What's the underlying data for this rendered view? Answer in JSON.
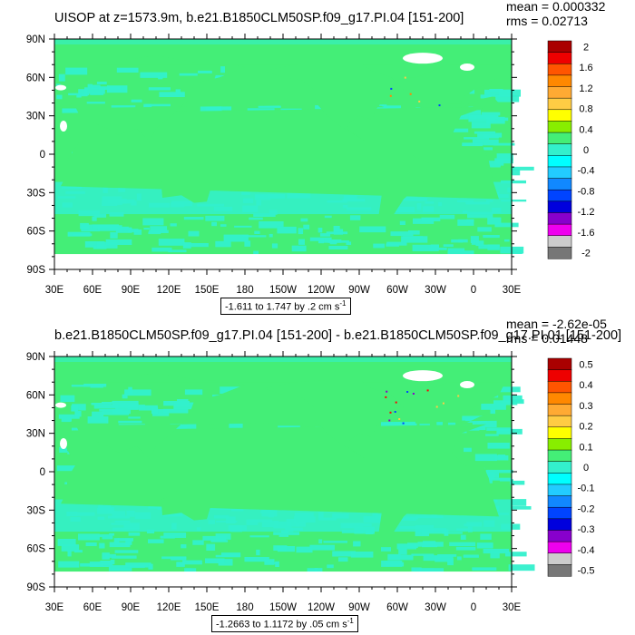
{
  "chart_data": [
    {
      "type": "heatmap",
      "title": "UISOP at z=1573.9m, b.e21.B1850CLM50SP.f09_g17.PI.04 [151-200]",
      "mean_label": "mean = 0.000332",
      "rms_label": "rms = 0.02713",
      "range_label": "-1.611 to 1.747 by .2 cm s",
      "range_unit_exp": "-1",
      "y_ticks": [
        "90N",
        "60N",
        "30N",
        "0",
        "30S",
        "60S",
        "90S"
      ],
      "x_ticks": [
        "30E",
        "60E",
        "90E",
        "120E",
        "150E",
        "180",
        "150W",
        "120W",
        "90W",
        "60W",
        "30W",
        "0",
        "30E"
      ],
      "colorbar_levels": [
        "2",
        "1.6",
        "1.2",
        "0.8",
        "0.4",
        "0",
        "-0.4",
        "-0.8",
        "-1.2",
        "-1.6",
        "-2"
      ]
    },
    {
      "type": "heatmap",
      "title": "b.e21.B1850CLM50SP.f09_g17.PI.04 [151-200] - b.e21.B1850CLM50SP.f09_g17.PI.01 [151-200]",
      "mean_label": "mean = -2.62e-05",
      "rms_label": "rms = 0.01448",
      "range_label": "-1.2663 to 1.1172 by .05 cm s",
      "range_unit_exp": "-1",
      "y_ticks": [
        "90N",
        "60N",
        "30N",
        "0",
        "30S",
        "60S",
        "90S"
      ],
      "x_ticks": [
        "30E",
        "60E",
        "90E",
        "120E",
        "150E",
        "180",
        "150W",
        "120W",
        "90W",
        "60W",
        "30W",
        "0",
        "30E"
      ],
      "colorbar_levels": [
        "0.5",
        "0.4",
        "0.3",
        "0.2",
        "0.1",
        "0",
        "-0.1",
        "-0.2",
        "-0.3",
        "-0.4",
        "-0.5"
      ]
    }
  ],
  "colors": {
    "field": "#44ee77",
    "field_alt": "#33f0cc",
    "land": "#ffffff",
    "colorbar": [
      "#aa0000",
      "#ee0000",
      "#ff5500",
      "#ff8800",
      "#ffaa33",
      "#ffcc44",
      "#ffff00",
      "#88ee00",
      "#44ee77",
      "#33f0cc",
      "#00ffff",
      "#22ccff",
      "#1188ff",
      "#0044ff",
      "#0000dd",
      "#8800cc",
      "#ee00ee",
      "#cccccc",
      "#777777"
    ]
  }
}
